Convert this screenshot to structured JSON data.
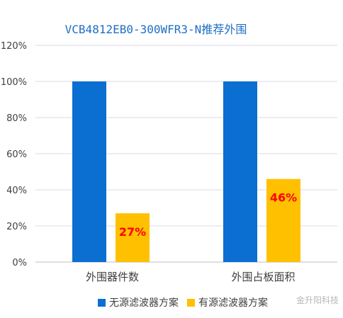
{
  "chart_data": {
    "type": "bar",
    "title": "VCB4812EB0-300WFR3-N推荐外围",
    "categories": [
      "外围器件数",
      "外围占板面积"
    ],
    "series": [
      {
        "name": "无源滤波器方案",
        "values": [
          100,
          100
        ],
        "color": "#0a6fd1",
        "data_labels": [
          "",
          ""
        ]
      },
      {
        "name": "有源滤波器方案",
        "values": [
          27,
          46
        ],
        "color": "#ffc000",
        "data_labels": [
          "27%",
          "46%"
        ]
      }
    ],
    "ylim": [
      0,
      120
    ],
    "yticks": [
      "0%",
      "20%",
      "40%",
      "60%",
      "80%",
      "100%",
      "120%"
    ],
    "grid": true,
    "legend": "bottom",
    "data_label_color": "#ff0000",
    "grid_color": "#d9d9e8"
  },
  "watermark": {
    "text": "金升阳科技"
  }
}
